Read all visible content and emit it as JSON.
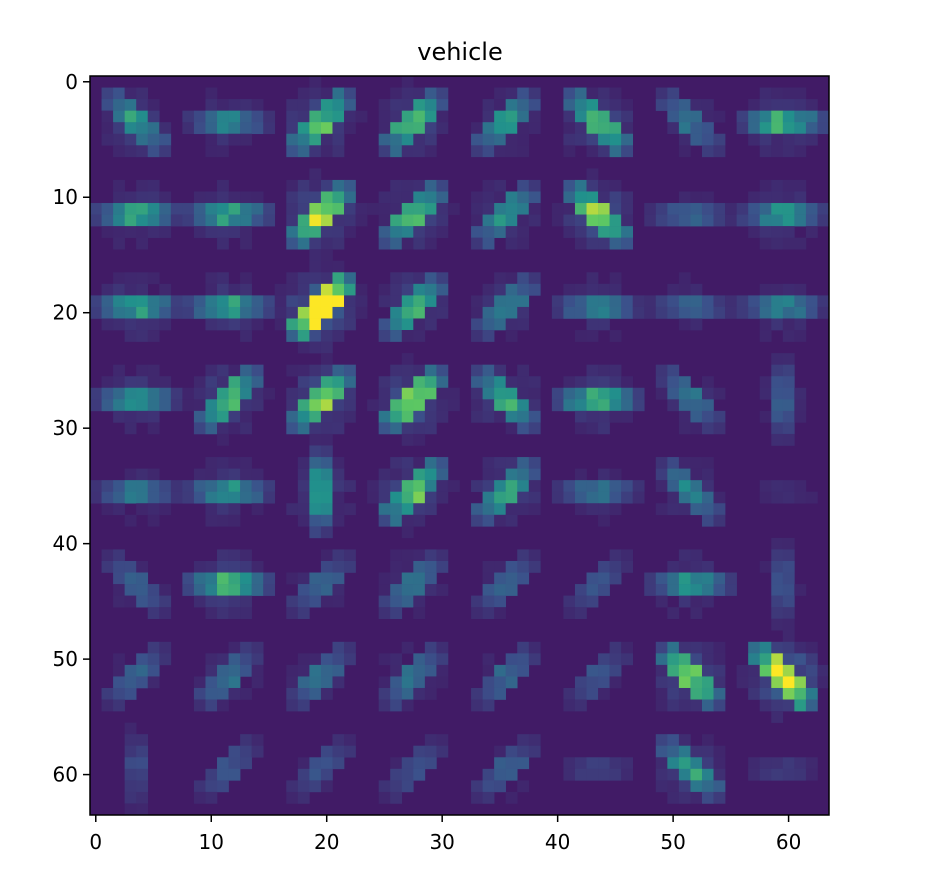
{
  "chart_data": {
    "type": "heatmap",
    "title": "vehicle",
    "xlabel": "",
    "ylabel": "",
    "xlim": [
      -0.5,
      63.5
    ],
    "ylim": [
      63.5,
      -0.5
    ],
    "xticks": [
      0,
      10,
      20,
      30,
      40,
      50,
      60
    ],
    "yticks": [
      0,
      10,
      20,
      30,
      40,
      50,
      60
    ],
    "grid": false,
    "colormap": "viridis",
    "value_range": [
      0,
      1
    ],
    "background_value": 0.08,
    "pattern": "8x8 cells of 8x8 pixels; each cell shows a star-shaped HOG orientation glyph centered on the cell",
    "cells": [
      [
        {
          "o": 3,
          "s": 0.4
        },
        {
          "o": 0,
          "s": 0.3
        },
        {
          "o": 1,
          "s": 0.55
        },
        {
          "o": 1,
          "s": 0.5
        },
        {
          "o": 1,
          "s": 0.35
        },
        {
          "o": 3,
          "s": 0.55
        },
        {
          "o": 3,
          "s": 0.25
        },
        {
          "o": 0,
          "s": 0.45
        }
      ],
      [
        {
          "o": 0,
          "s": 0.4
        },
        {
          "o": 0,
          "s": 0.4
        },
        {
          "o": 1,
          "s": 0.7
        },
        {
          "o": 1,
          "s": 0.5
        },
        {
          "o": 1,
          "s": 0.35
        },
        {
          "o": 3,
          "s": 0.6
        },
        {
          "o": 0,
          "s": 0.2
        },
        {
          "o": 0,
          "s": 0.35
        }
      ],
      [
        {
          "o": 0,
          "s": 0.4
        },
        {
          "o": 0,
          "s": 0.4
        },
        {
          "o": 1,
          "s": 0.95
        },
        {
          "o": 1,
          "s": 0.45
        },
        {
          "o": 1,
          "s": 0.3
        },
        {
          "o": 0,
          "s": 0.3
        },
        {
          "o": 0,
          "s": 0.2
        },
        {
          "o": 0,
          "s": 0.3
        }
      ],
      [
        {
          "o": 0,
          "s": 0.35
        },
        {
          "o": 1,
          "s": 0.5
        },
        {
          "o": 1,
          "s": 0.6
        },
        {
          "o": 1,
          "s": 0.65
        },
        {
          "o": 3,
          "s": 0.45
        },
        {
          "o": 0,
          "s": 0.45
        },
        {
          "o": 3,
          "s": 0.25
        },
        {
          "o": 2,
          "s": 0.2
        }
      ],
      [
        {
          "o": 0,
          "s": 0.25
        },
        {
          "o": 0,
          "s": 0.35
        },
        {
          "o": 2,
          "s": 0.4
        },
        {
          "o": 1,
          "s": 0.55
        },
        {
          "o": 1,
          "s": 0.45
        },
        {
          "o": 0,
          "s": 0.25
        },
        {
          "o": 3,
          "s": 0.3
        },
        {
          "o": 0,
          "s": 0.05
        }
      ],
      [
        {
          "o": 3,
          "s": 0.2
        },
        {
          "o": 0,
          "s": 0.45
        },
        {
          "o": 1,
          "s": 0.2
        },
        {
          "o": 1,
          "s": 0.25
        },
        {
          "o": 1,
          "s": 0.2
        },
        {
          "o": 1,
          "s": 0.15
        },
        {
          "o": 0,
          "s": 0.35
        },
        {
          "o": 2,
          "s": 0.15
        }
      ],
      [
        {
          "o": 1,
          "s": 0.2
        },
        {
          "o": 1,
          "s": 0.25
        },
        {
          "o": 1,
          "s": 0.25
        },
        {
          "o": 1,
          "s": 0.25
        },
        {
          "o": 1,
          "s": 0.2
        },
        {
          "o": 1,
          "s": 0.15
        },
        {
          "o": 3,
          "s": 0.6
        },
        {
          "o": 3,
          "s": 0.85
        }
      ],
      [
        {
          "o": 2,
          "s": 0.12
        },
        {
          "o": 1,
          "s": 0.15
        },
        {
          "o": 1,
          "s": 0.15
        },
        {
          "o": 1,
          "s": 0.15
        },
        {
          "o": 1,
          "s": 0.2
        },
        {
          "o": 0,
          "s": 0.1
        },
        {
          "o": 3,
          "s": 0.4
        },
        {
          "o": 0,
          "s": 0.08
        }
      ]
    ]
  }
}
